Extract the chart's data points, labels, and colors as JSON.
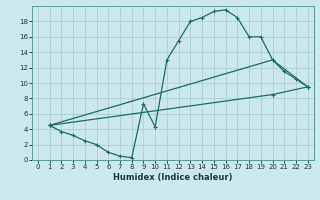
{
  "xlabel": "Humidex (Indice chaleur)",
  "bg_color": "#cce8ec",
  "line_color": "#1e6b6b",
  "grid_color": "#aacfd4",
  "xlim": [
    -0.5,
    23.5
  ],
  "ylim": [
    0,
    20
  ],
  "xticks": [
    0,
    1,
    2,
    3,
    4,
    5,
    6,
    7,
    8,
    9,
    10,
    11,
    12,
    13,
    14,
    15,
    16,
    17,
    18,
    19,
    20,
    21,
    22,
    23
  ],
  "yticks": [
    0,
    2,
    4,
    6,
    8,
    10,
    12,
    14,
    16,
    18
  ],
  "line1": {
    "x": [
      1,
      2,
      3,
      4,
      5,
      6,
      7,
      8,
      9,
      10,
      11,
      12,
      13,
      14,
      15,
      16,
      17,
      18,
      19,
      20,
      21,
      22,
      23
    ],
    "y": [
      4.5,
      3.7,
      3.2,
      2.5,
      2.0,
      1.0,
      0.5,
      0.3,
      7.3,
      4.3,
      13.0,
      15.5,
      18.0,
      18.5,
      19.3,
      19.5,
      18.5,
      16.0,
      16.0,
      13.0,
      11.5,
      10.5,
      9.5
    ]
  },
  "line2": {
    "x": [
      1,
      20,
      23
    ],
    "y": [
      4.5,
      13.0,
      9.5
    ]
  },
  "line3": {
    "x": [
      1,
      20,
      23
    ],
    "y": [
      4.5,
      8.5,
      9.5
    ]
  }
}
